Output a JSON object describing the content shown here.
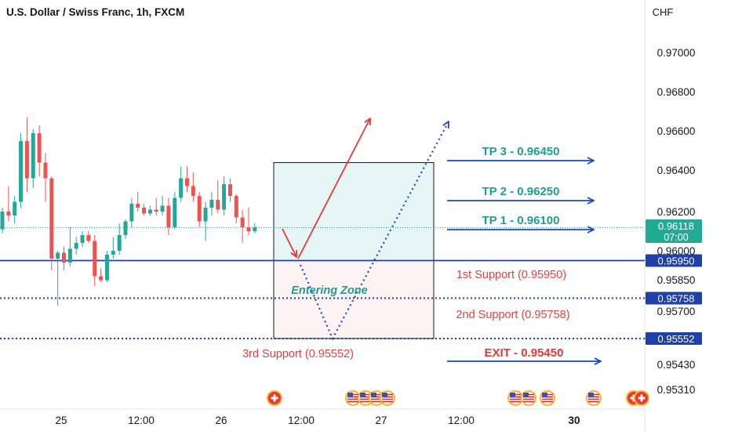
{
  "header": {
    "title": "U.S. Dollar / Swiss Franc, 1h, FXCM"
  },
  "price_axis": {
    "unit_label": "CHF"
  },
  "colors": {
    "up": "#26a69a",
    "down": "#ef5350",
    "blue": "#1848c8",
    "red_text": "#e04040",
    "teal_text": "#1e9e8e",
    "dark_blue_line": "#1e40a8",
    "tp_zone_fill": "#e6f6f6",
    "sl_zone_fill": "#fdf3f3",
    "current_badge": "#22ab94"
  },
  "chart_data": {
    "type": "candlestick",
    "title": "U.S. Dollar / Swiss Franc, 1h, FXCM",
    "y_unit": "CHF",
    "y_ticks": [
      "0.97000",
      "0.96800",
      "0.96600",
      "0.96400",
      "0.96200",
      "0.96000",
      "0.95850",
      "0.95700",
      "0.95430",
      "0.95310"
    ],
    "x_ticks": [
      "25",
      "12:00",
      "26",
      "12:00",
      "27",
      "12:00",
      "30"
    ],
    "current_price": {
      "value": "0.96118",
      "countdown": "07:00"
    },
    "candles": [
      {
        "o": 0.9611,
        "h": 0.9622,
        "l": 0.9609,
        "c": 0.962
      },
      {
        "o": 0.962,
        "h": 0.9633,
        "l": 0.9615,
        "c": 0.9618
      },
      {
        "o": 0.9618,
        "h": 0.9628,
        "l": 0.9614,
        "c": 0.9625
      },
      {
        "o": 0.9625,
        "h": 0.966,
        "l": 0.9622,
        "c": 0.9656
      },
      {
        "o": 0.9656,
        "h": 0.9668,
        "l": 0.963,
        "c": 0.9637
      },
      {
        "o": 0.9637,
        "h": 0.9662,
        "l": 0.9632,
        "c": 0.966
      },
      {
        "o": 0.966,
        "h": 0.9664,
        "l": 0.9638,
        "c": 0.9645
      },
      {
        "o": 0.9645,
        "h": 0.965,
        "l": 0.9625,
        "c": 0.9637
      },
      {
        "o": 0.9637,
        "h": 0.9638,
        "l": 0.959,
        "c": 0.9596
      },
      {
        "o": 0.9596,
        "h": 0.96,
        "l": 0.9572,
        "c": 0.9599
      },
      {
        "o": 0.9599,
        "h": 0.9602,
        "l": 0.959,
        "c": 0.9594
      },
      {
        "o": 0.9594,
        "h": 0.9612,
        "l": 0.9592,
        "c": 0.9601
      },
      {
        "o": 0.9601,
        "h": 0.9607,
        "l": 0.9598,
        "c": 0.9604
      },
      {
        "o": 0.9604,
        "h": 0.961,
        "l": 0.9602,
        "c": 0.9608
      },
      {
        "o": 0.9608,
        "h": 0.961,
        "l": 0.9604,
        "c": 0.9605
      },
      {
        "o": 0.9605,
        "h": 0.9608,
        "l": 0.9582,
        "c": 0.9587
      },
      {
        "o": 0.9587,
        "h": 0.9591,
        "l": 0.9584,
        "c": 0.9585
      },
      {
        "o": 0.9585,
        "h": 0.96,
        "l": 0.9584,
        "c": 0.9598
      },
      {
        "o": 0.9598,
        "h": 0.9607,
        "l": 0.9596,
        "c": 0.96
      },
      {
        "o": 0.96,
        "h": 0.9614,
        "l": 0.9598,
        "c": 0.9608
      },
      {
        "o": 0.9608,
        "h": 0.9616,
        "l": 0.9606,
        "c": 0.9615
      },
      {
        "o": 0.9615,
        "h": 0.9627,
        "l": 0.9612,
        "c": 0.9624
      },
      {
        "o": 0.9624,
        "h": 0.963,
        "l": 0.962,
        "c": 0.9622
      },
      {
        "o": 0.9622,
        "h": 0.9624,
        "l": 0.9618,
        "c": 0.9619
      },
      {
        "o": 0.9619,
        "h": 0.9623,
        "l": 0.9618,
        "c": 0.9621
      },
      {
        "o": 0.9621,
        "h": 0.9627,
        "l": 0.9618,
        "c": 0.962
      },
      {
        "o": 0.962,
        "h": 0.9628,
        "l": 0.9618,
        "c": 0.9623
      },
      {
        "o": 0.9623,
        "h": 0.9627,
        "l": 0.9608,
        "c": 0.9612
      },
      {
        "o": 0.9612,
        "h": 0.963,
        "l": 0.9611,
        "c": 0.9627
      },
      {
        "o": 0.9627,
        "h": 0.9643,
        "l": 0.9625,
        "c": 0.9637
      },
      {
        "o": 0.9637,
        "h": 0.9643,
        "l": 0.963,
        "c": 0.9633
      },
      {
        "o": 0.9633,
        "h": 0.964,
        "l": 0.9625,
        "c": 0.9628
      },
      {
        "o": 0.9628,
        "h": 0.963,
        "l": 0.9612,
        "c": 0.9615
      },
      {
        "o": 0.9615,
        "h": 0.9625,
        "l": 0.9605,
        "c": 0.9622
      },
      {
        "o": 0.9622,
        "h": 0.963,
        "l": 0.9618,
        "c": 0.9626
      },
      {
        "o": 0.9626,
        "h": 0.9636,
        "l": 0.9619,
        "c": 0.9621
      },
      {
        "o": 0.9621,
        "h": 0.9638,
        "l": 0.9618,
        "c": 0.9634
      },
      {
        "o": 0.9634,
        "h": 0.9637,
        "l": 0.9625,
        "c": 0.9628
      },
      {
        "o": 0.9628,
        "h": 0.9629,
        "l": 0.9614,
        "c": 0.9617
      },
      {
        "o": 0.9617,
        "h": 0.9621,
        "l": 0.9604,
        "c": 0.9612
      },
      {
        "o": 0.9612,
        "h": 0.9622,
        "l": 0.9608,
        "c": 0.961
      },
      {
        "o": 0.961,
        "h": 0.9614,
        "l": 0.9609,
        "c": 0.9612
      }
    ],
    "support_lines": [
      {
        "price": 0.9595,
        "badge": "0.95950",
        "style": "solid",
        "label": "1st Support (0.95950)"
      },
      {
        "price": 0.95758,
        "badge": "0.95758",
        "style": "dotted",
        "label": "2nd Support (0.95758)"
      },
      {
        "price": 0.95552,
        "badge": "0.95552",
        "style": "dotted",
        "label": "3rd Support (0.95552)"
      }
    ],
    "targets": [
      {
        "label": "TP 3 - 0.96450",
        "price": 0.9645
      },
      {
        "label": "TP 2 - 0.96250",
        "price": 0.9625
      },
      {
        "label": "TP 1 - 0.96100",
        "price": 0.961
      }
    ],
    "exit": {
      "label": "EXIT - 0.95450",
      "price": 0.9545
    },
    "zone": {
      "label": "Entering Zone",
      "top": 0.9645,
      "mid": 0.9595,
      "bottom": 0.95552
    }
  }
}
